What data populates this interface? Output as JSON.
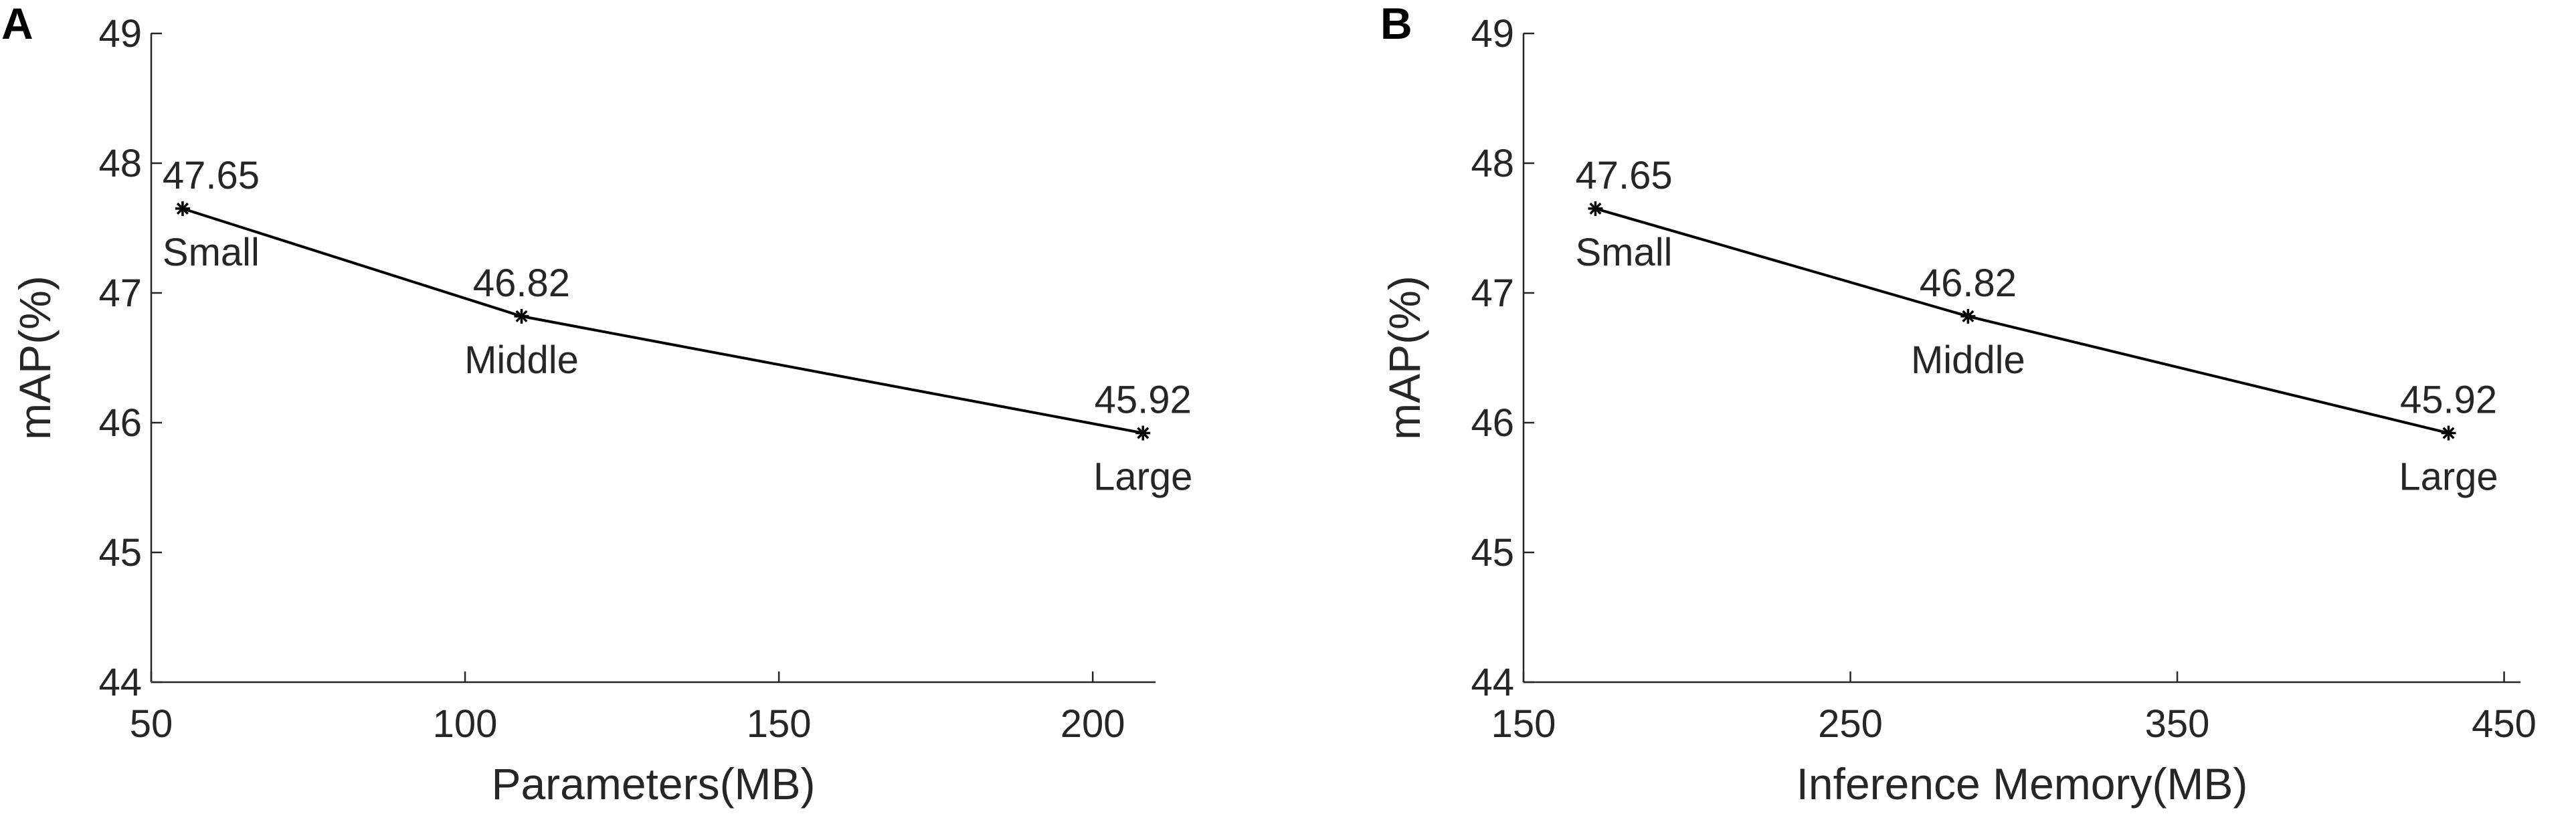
{
  "chart_data": [
    {
      "panel": "A",
      "type": "line",
      "xlabel": "Parameters(MB)",
      "ylabel": "mAP(%)",
      "xlim": [
        50,
        210
      ],
      "ylim": [
        44,
        49
      ],
      "xticks": [
        50,
        100,
        150,
        200
      ],
      "yticks": [
        44,
        45,
        46,
        47,
        48,
        49
      ],
      "grid": false,
      "box": false,
      "points": [
        {
          "x": 55,
          "y": 47.65,
          "value_label": "47.65",
          "name": "Small"
        },
        {
          "x": 109,
          "y": 46.82,
          "value_label": "46.82",
          "name": "Middle"
        },
        {
          "x": 208,
          "y": 45.92,
          "value_label": "45.92",
          "name": "Large"
        }
      ],
      "line_color": "#000000",
      "marker": "asterisk"
    },
    {
      "panel": "B",
      "type": "line",
      "xlabel": "Inference Memory(MB)",
      "ylabel": "mAP(%)",
      "xlim": [
        150,
        455
      ],
      "ylim": [
        44,
        49
      ],
      "xticks": [
        150,
        250,
        350,
        450
      ],
      "yticks": [
        44,
        45,
        46,
        47,
        48,
        49
      ],
      "grid": false,
      "box": false,
      "points": [
        {
          "x": 172,
          "y": 47.65,
          "value_label": "47.65",
          "name": "Small"
        },
        {
          "x": 286,
          "y": 46.82,
          "value_label": "46.82",
          "name": "Middle"
        },
        {
          "x": 433,
          "y": 45.92,
          "value_label": "45.92",
          "name": "Large"
        }
      ],
      "line_color": "#000000",
      "marker": "asterisk"
    }
  ]
}
